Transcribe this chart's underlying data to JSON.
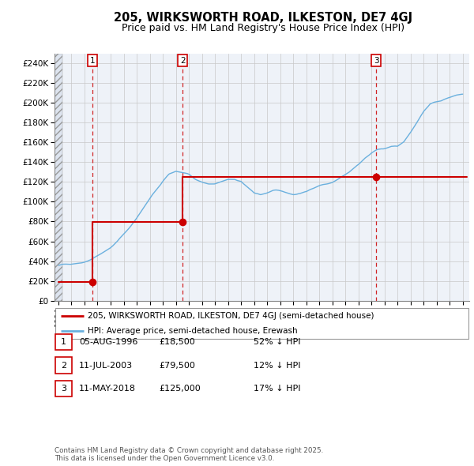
{
  "title1": "205, WIRKSWORTH ROAD, ILKESTON, DE7 4GJ",
  "title2": "Price paid vs. HM Land Registry's House Price Index (HPI)",
  "xlim_start": 1993.7,
  "xlim_end": 2025.5,
  "ylim_min": 0,
  "ylim_max": 250000,
  "sale_dates": [
    1996.59,
    2003.52,
    2018.36
  ],
  "sale_prices": [
    18500,
    79500,
    125000
  ],
  "sale_labels": [
    "1",
    "2",
    "3"
  ],
  "legend_line1": "205, WIRKSWORTH ROAD, ILKESTON, DE7 4GJ (semi-detached house)",
  "legend_line2": "HPI: Average price, semi-detached house, Erewash",
  "table_rows": [
    [
      "1",
      "05-AUG-1996",
      "£18,500",
      "52% ↓ HPI"
    ],
    [
      "2",
      "11-JUL-2003",
      "£79,500",
      "12% ↓ HPI"
    ],
    [
      "3",
      "11-MAY-2018",
      "£125,000",
      "17% ↓ HPI"
    ]
  ],
  "footer": "Contains HM Land Registry data © Crown copyright and database right 2025.\nThis data is licensed under the Open Government Licence v3.0.",
  "hpi_color": "#6ab0de",
  "sale_color": "#cc0000",
  "vline_color": "#cc0000",
  "grid_color": "#c8c8c8",
  "label_box_color": "#cc0000",
  "hpi_points_x": [
    1994.0,
    1994.5,
    1995.0,
    1995.5,
    1996.0,
    1996.5,
    1997.0,
    1997.5,
    1998.0,
    1998.5,
    1999.0,
    1999.5,
    2000.0,
    2000.5,
    2001.0,
    2001.5,
    2002.0,
    2002.5,
    2003.0,
    2003.5,
    2004.0,
    2004.5,
    2005.0,
    2005.5,
    2006.0,
    2006.5,
    2007.0,
    2007.5,
    2008.0,
    2008.5,
    2009.0,
    2009.5,
    2010.0,
    2010.5,
    2011.0,
    2011.5,
    2012.0,
    2012.5,
    2013.0,
    2013.5,
    2014.0,
    2014.5,
    2015.0,
    2015.5,
    2016.0,
    2016.5,
    2017.0,
    2017.5,
    2018.0,
    2018.5,
    2019.0,
    2019.5,
    2020.0,
    2020.5,
    2021.0,
    2021.5,
    2022.0,
    2022.5,
    2023.0,
    2023.5,
    2024.0,
    2024.5,
    2025.0
  ],
  "hpi_points_y": [
    35000,
    36500,
    38000,
    40000,
    42000,
    44500,
    48000,
    52000,
    57000,
    63000,
    70000,
    78000,
    87000,
    96000,
    105000,
    114000,
    122000,
    128000,
    131000,
    130000,
    128000,
    124000,
    121000,
    119000,
    118000,
    119000,
    121000,
    122000,
    120000,
    113000,
    107000,
    105000,
    107000,
    108000,
    108000,
    107000,
    106000,
    107000,
    109000,
    112000,
    116000,
    119000,
    122000,
    126000,
    130000,
    135000,
    140000,
    146000,
    150000,
    153000,
    155000,
    157000,
    158000,
    163000,
    172000,
    183000,
    194000,
    202000,
    205000,
    207000,
    208000,
    210000,
    211000
  ]
}
